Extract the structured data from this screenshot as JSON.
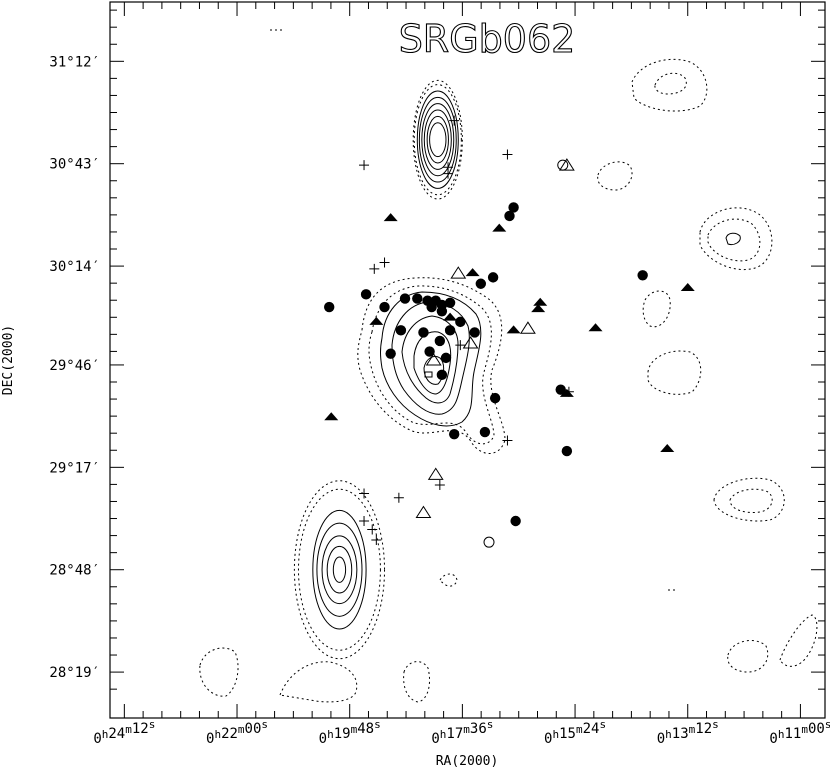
{
  "chart_data": {
    "type": "scatter",
    "title": "SRGb062",
    "xlabel": "RA(2000)",
    "ylabel": "DEC(2000)",
    "x_ticks": [
      {
        "value": "0h24m12s",
        "label": "0h24m12s",
        "ra_deg": 6.05
      },
      {
        "value": "0h22m00s",
        "label": "0h22m00s",
        "ra_deg": 5.5
      },
      {
        "value": "0h19m48s",
        "label": "0h19m48s",
        "ra_deg": 4.95
      },
      {
        "value": "0h17m36s",
        "label": "0h17m36s",
        "ra_deg": 4.4
      },
      {
        "value": "0h15m24s",
        "label": "0h15m24s",
        "ra_deg": 3.85
      },
      {
        "value": "0h13m12s",
        "label": "0h13m12s",
        "ra_deg": 3.3
      },
      {
        "value": "0h11m00s",
        "label": "0h11m00s",
        "ra_deg": 2.75
      }
    ],
    "y_ticks": [
      {
        "label": "31°12′",
        "dec_deg": 31.2
      },
      {
        "label": "30°43′",
        "dec_deg": 30.7167
      },
      {
        "label": "30°14′",
        "dec_deg": 30.2333
      },
      {
        "label": "29°46′",
        "dec_deg": 29.7667
      },
      {
        "label": "29°17′",
        "dec_deg": 29.2833
      },
      {
        "label": "28°48′",
        "dec_deg": 28.8
      },
      {
        "label": "28°19′",
        "dec_deg": 28.3167
      }
    ],
    "xlim_ra_deg": [
      6.12,
      2.63
    ],
    "ylim_dec_deg": [
      28.1,
      31.48
    ],
    "series": [
      {
        "marker": "filled-circle",
        "points": [
          {
            "ra": 4.87,
            "dec": 30.1
          },
          {
            "ra": 4.78,
            "dec": 30.04
          },
          {
            "ra": 4.68,
            "dec": 30.08
          },
          {
            "ra": 4.62,
            "dec": 30.08
          },
          {
            "ra": 4.57,
            "dec": 30.07
          },
          {
            "ra": 4.53,
            "dec": 30.07
          },
          {
            "ra": 4.5,
            "dec": 30.05
          },
          {
            "ra": 4.55,
            "dec": 30.04
          },
          {
            "ra": 4.46,
            "dec": 30.06
          },
          {
            "ra": 4.7,
            "dec": 29.93
          },
          {
            "ra": 4.59,
            "dec": 29.92
          },
          {
            "ra": 4.51,
            "dec": 29.88
          },
          {
            "ra": 4.56,
            "dec": 29.83
          },
          {
            "ra": 4.48,
            "dec": 29.8
          },
          {
            "ra": 4.41,
            "dec": 29.97
          },
          {
            "ra": 4.34,
            "dec": 29.92
          },
          {
            "ra": 4.25,
            "dec": 30.18
          },
          {
            "ra": 4.31,
            "dec": 30.15
          },
          {
            "ra": 4.17,
            "dec": 30.47
          },
          {
            "ra": 4.15,
            "dec": 30.51
          },
          {
            "ra": 4.24,
            "dec": 29.61
          },
          {
            "ra": 4.29,
            "dec": 29.45
          },
          {
            "ra": 4.44,
            "dec": 29.44
          },
          {
            "ra": 4.75,
            "dec": 29.82
          },
          {
            "ra": 4.5,
            "dec": 29.72
          },
          {
            "ra": 3.92,
            "dec": 29.65
          },
          {
            "ra": 3.89,
            "dec": 29.36
          },
          {
            "ra": 3.52,
            "dec": 30.19
          },
          {
            "ra": 4.14,
            "dec": 29.03
          },
          {
            "ra": 5.05,
            "dec": 30.04
          },
          {
            "ra": 4.5,
            "dec": 30.02
          },
          {
            "ra": 4.46,
            "dec": 29.93
          }
        ]
      },
      {
        "marker": "filled-triangle",
        "points": [
          {
            "ra": 4.75,
            "dec": 30.46
          },
          {
            "ra": 4.22,
            "dec": 30.41
          },
          {
            "ra": 4.35,
            "dec": 30.2
          },
          {
            "ra": 4.02,
            "dec": 30.06
          },
          {
            "ra": 4.03,
            "dec": 30.03
          },
          {
            "ra": 3.75,
            "dec": 29.94
          },
          {
            "ra": 4.82,
            "dec": 29.97
          },
          {
            "ra": 4.46,
            "dec": 29.99
          },
          {
            "ra": 4.15,
            "dec": 29.93
          },
          {
            "ra": 3.89,
            "dec": 29.63
          },
          {
            "ra": 3.4,
            "dec": 29.37
          },
          {
            "ra": 3.3,
            "dec": 30.13
          },
          {
            "ra": 5.04,
            "dec": 29.52
          }
        ]
      },
      {
        "marker": "open-triangle",
        "points": [
          {
            "ra": 4.42,
            "dec": 30.2
          },
          {
            "ra": 4.08,
            "dec": 29.94
          },
          {
            "ra": 4.36,
            "dec": 29.87
          },
          {
            "ra": 4.54,
            "dec": 29.79
          },
          {
            "ra": 4.53,
            "dec": 29.25
          },
          {
            "ra": 4.59,
            "dec": 29.07
          },
          {
            "ra": 3.89,
            "dec": 30.71
          }
        ]
      },
      {
        "marker": "open-circle",
        "points": [
          {
            "ra": 3.91,
            "dec": 30.71
          },
          {
            "ra": 4.27,
            "dec": 28.93
          }
        ]
      },
      {
        "marker": "plus",
        "points": [
          {
            "ra": 4.88,
            "dec": 30.71
          },
          {
            "ra": 4.44,
            "dec": 30.92
          },
          {
            "ra": 4.47,
            "dec": 30.7
          },
          {
            "ra": 4.47,
            "dec": 30.67
          },
          {
            "ra": 4.18,
            "dec": 30.76
          },
          {
            "ra": 4.78,
            "dec": 30.25
          },
          {
            "ra": 4.83,
            "dec": 30.22
          },
          {
            "ra": 3.88,
            "dec": 29.64
          },
          {
            "ra": 4.18,
            "dec": 29.41
          },
          {
            "ra": 4.51,
            "dec": 29.2
          },
          {
            "ra": 4.88,
            "dec": 29.16
          },
          {
            "ra": 4.71,
            "dec": 29.14
          },
          {
            "ra": 4.88,
            "dec": 29.03
          },
          {
            "ra": 4.84,
            "dec": 28.99
          },
          {
            "ra": 4.82,
            "dec": 28.94
          },
          {
            "ra": 4.41,
            "dec": 29.86
          }
        ]
      }
    ],
    "contours": [
      {
        "name": "upper-source",
        "ra": 4.52,
        "dec": 30.83,
        "levels": [
          {
            "style": "dotted",
            "rx": 0.12,
            "ry": 0.28
          },
          {
            "style": "dotted",
            "rx": 0.115,
            "ry": 0.26
          },
          {
            "style": "solid",
            "rx": 0.1,
            "ry": 0.23
          },
          {
            "style": "solid",
            "rx": 0.09,
            "ry": 0.2
          },
          {
            "style": "solid",
            "rx": 0.078,
            "ry": 0.17
          },
          {
            "style": "solid",
            "rx": 0.066,
            "ry": 0.14
          },
          {
            "style": "solid",
            "rx": 0.052,
            "ry": 0.11
          },
          {
            "style": "solid",
            "rx": 0.04,
            "ry": 0.08
          }
        ]
      },
      {
        "name": "lower-left-source",
        "ra": 5.0,
        "dec": 28.8,
        "levels": [
          {
            "style": "dotted",
            "rx": 0.22,
            "ry": 0.42
          },
          {
            "style": "dotted",
            "rx": 0.2,
            "ry": 0.38
          },
          {
            "style": "solid",
            "rx": 0.13,
            "ry": 0.28
          },
          {
            "style": "solid",
            "rx": 0.11,
            "ry": 0.22
          },
          {
            "style": "solid",
            "rx": 0.085,
            "ry": 0.16
          },
          {
            "style": "solid",
            "rx": 0.06,
            "ry": 0.11
          },
          {
            "style": "solid",
            "rx": 0.03,
            "ry": 0.06
          }
        ]
      }
    ]
  }
}
